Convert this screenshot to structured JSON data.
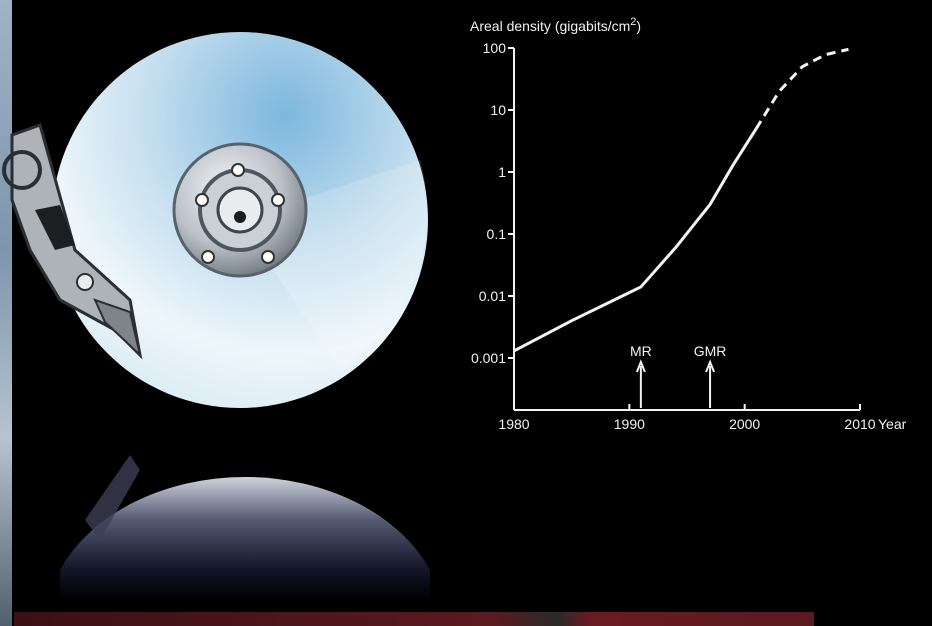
{
  "chart_data": {
    "type": "line",
    "ylabel": "Areal density (gigabits/cm",
    "ylabel_superscript": "2",
    "ylabel_close": ")",
    "xlabel": "Year",
    "y_scale": "log",
    "ylim": [
      0.001,
      100
    ],
    "xlim": [
      1980,
      2010
    ],
    "yticks": [
      "100",
      "10",
      "1",
      "0.1",
      "0.01",
      "0.001"
    ],
    "ytick_values": [
      100,
      10,
      1,
      0.1,
      0.01,
      0.001
    ],
    "xticks": [
      "1980",
      "1990",
      "2000",
      "2010"
    ],
    "xtick_values": [
      1980,
      1990,
      2000,
      2010
    ],
    "grid": false,
    "series": [
      {
        "style": "solid",
        "x": [
          1980,
          1985,
          1991,
          1994,
          1997,
          1999,
          2001
        ],
        "y": [
          0.0013,
          0.004,
          0.014,
          0.06,
          0.3,
          1.3,
          5
        ]
      },
      {
        "style": "dashed",
        "x": [
          2001,
          2003,
          2005,
          2007,
          2009
        ],
        "y": [
          5,
          20,
          50,
          78,
          95
        ]
      }
    ],
    "annotations": [
      {
        "label": "MR",
        "x": 1991
      },
      {
        "label": "GMR",
        "x": 1997
      }
    ],
    "line_color": "#f2f2f2"
  }
}
